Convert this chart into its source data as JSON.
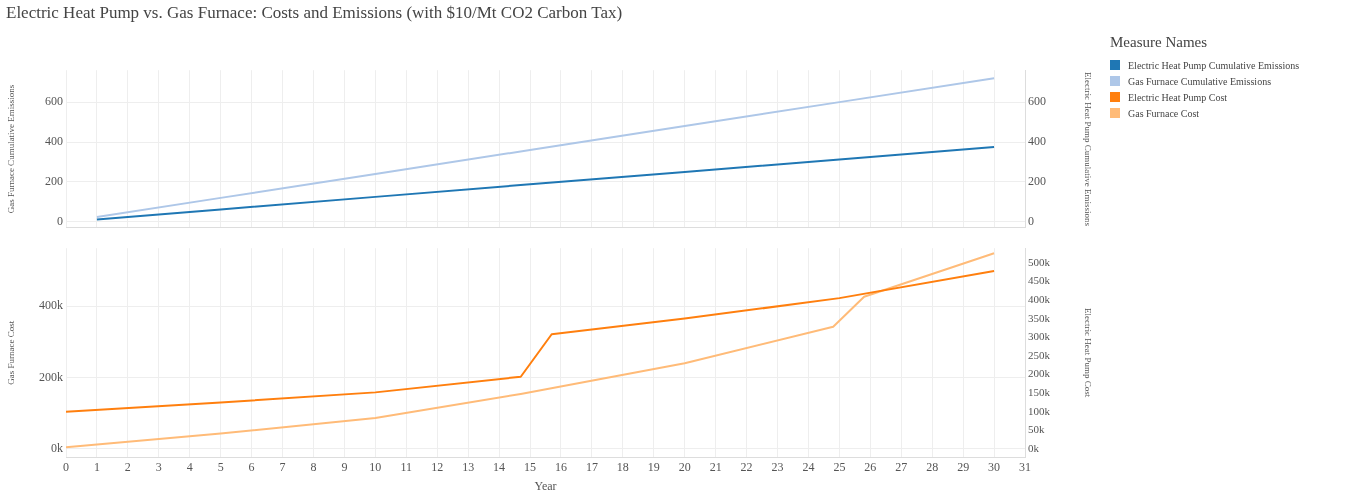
{
  "chart_data": [
    {
      "type": "line",
      "title": "Electric Heat Pump vs. Gas Furnace: Costs and Emissions (with $10/Mt CO2 Carbon Tax)",
      "ylabel": "Gas Furnace Cumulative Emissions",
      "y2label": "Electric Heat Pump Cumulative Emissions",
      "legend_title": "Measure Names",
      "legend": "right",
      "xlim": [
        0,
        31
      ],
      "xticks": [
        0,
        1,
        2,
        3,
        4,
        5,
        6,
        7,
        8,
        9,
        10,
        11,
        12,
        13,
        14,
        15,
        16,
        17,
        18,
        19,
        20,
        21,
        22,
        23,
        24,
        25,
        26,
        27,
        28,
        29,
        30,
        31
      ],
      "ylim": [
        -30,
        760
      ],
      "yticks": [
        0,
        200,
        400,
        600
      ],
      "y2lim": [
        -30,
        760
      ],
      "y2ticks": [
        0,
        200,
        400,
        600
      ],
      "tick_labels": "y",
      "grid": true,
      "series": [
        {
          "name": "Electric Heat Pump Cumulative Emissions",
          "color": "#1f77b4",
          "axis": "y2",
          "x": [
            1,
            5,
            10,
            15,
            20,
            25,
            30
          ],
          "values": [
            12,
            62,
            125,
            188,
            250,
            312,
            375
          ]
        },
        {
          "name": "Gas Furnace Cumulative Emissions",
          "color": "#aec7e8",
          "x": [
            1,
            5,
            10,
            15,
            20,
            25,
            30
          ],
          "values": [
            24,
            120,
            240,
            360,
            480,
            600,
            720
          ]
        }
      ]
    },
    {
      "type": "line",
      "xlabel": "Year",
      "ylabel": "Gas Furnace Cost",
      "y2label": "Electric Heat Pump Cost",
      "legend": "right",
      "xlim": [
        0,
        31
      ],
      "xticks": [
        0,
        1,
        2,
        3,
        4,
        5,
        6,
        7,
        8,
        9,
        10,
        11,
        12,
        13,
        14,
        15,
        16,
        17,
        18,
        19,
        20,
        21,
        22,
        23,
        24,
        25,
        26,
        27,
        28,
        29,
        30,
        31
      ],
      "ylim": [
        -23000,
        562000
      ],
      "yticks": [
        {
          "value": 0,
          "label": "0k"
        },
        {
          "value": 200000,
          "label": "200k"
        },
        {
          "value": 400000,
          "label": "400k"
        }
      ],
      "y2lim": [
        -22000,
        539000
      ],
      "y2ticks": [
        {
          "value": 0,
          "label": "0k"
        },
        {
          "value": 50000,
          "label": "50k"
        },
        {
          "value": 100000,
          "label": "100k"
        },
        {
          "value": 150000,
          "label": "150k"
        },
        {
          "value": 200000,
          "label": "200k"
        },
        {
          "value": 250000,
          "label": "250k"
        },
        {
          "value": 300000,
          "label": "300k"
        },
        {
          "value": 350000,
          "label": "350k"
        },
        {
          "value": 400000,
          "label": "400k"
        },
        {
          "value": 450000,
          "label": "450k"
        },
        {
          "value": 500000,
          "label": "500k"
        }
      ],
      "grid": true,
      "series": [
        {
          "name": "Electric Heat Pump Cost",
          "color": "#ff7f0e",
          "axis": "y2",
          "x": [
            0,
            5,
            10,
            14.7,
            15.7,
            20,
            25,
            30
          ],
          "values": [
            100000,
            125000,
            152000,
            194000,
            308000,
            350000,
            405000,
            478000
          ]
        },
        {
          "name": "Gas Furnace Cost",
          "color": "#ffbb78",
          "x": [
            0,
            5,
            10,
            14.7,
            20,
            24.8,
            25.8,
            30
          ],
          "values": [
            5000,
            43000,
            87000,
            154000,
            240000,
            342000,
            426000,
            548000
          ]
        }
      ]
    }
  ]
}
